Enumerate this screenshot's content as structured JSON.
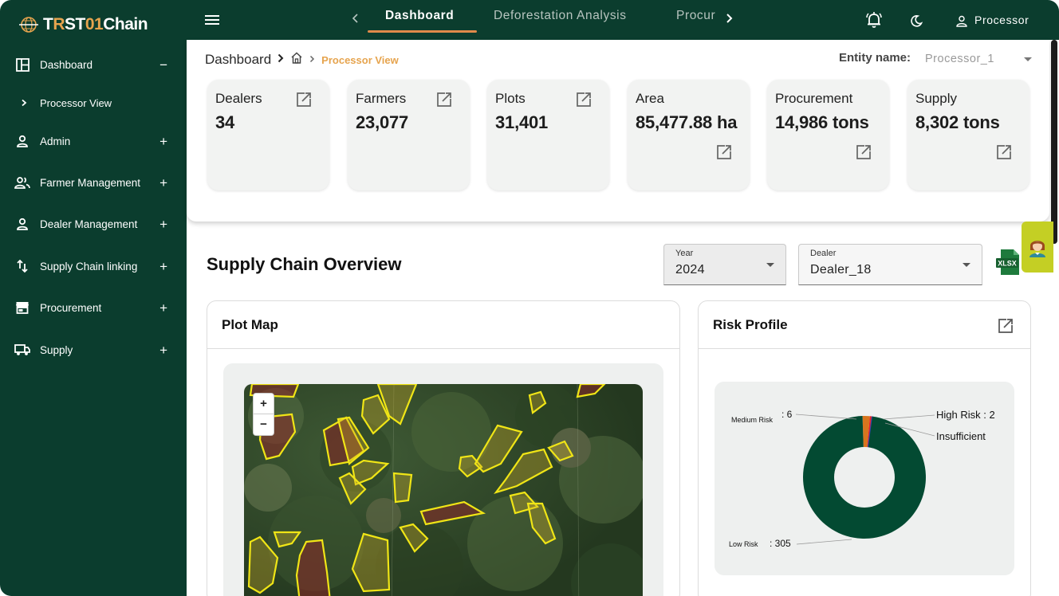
{
  "app": {
    "logo_prefix": "T",
    "logo_r": "R",
    "logo_st": "ST",
    "logo_01": "01",
    "logo_suffix": "Chain"
  },
  "sidebar": {
    "items": [
      {
        "label": "Dashboard",
        "toggle": "−",
        "icon": "dashboard-icon"
      },
      {
        "label": "Processor View",
        "toggle": "",
        "icon": "chevron-right-icon"
      },
      {
        "label": "Admin",
        "toggle": "+",
        "icon": "person-icon"
      },
      {
        "label": "Farmer Management",
        "toggle": "+",
        "icon": "people-icon"
      },
      {
        "label": "Dealer Management",
        "toggle": "+",
        "icon": "person-icon"
      },
      {
        "label": "Supply Chain linking",
        "toggle": "+",
        "icon": "swap-vertical-icon"
      },
      {
        "label": "Procurement",
        "toggle": "+",
        "icon": "store-icon"
      },
      {
        "label": "Supply",
        "toggle": "+",
        "icon": "truck-icon"
      }
    ]
  },
  "header": {
    "tabs": [
      {
        "label": "Dashboard",
        "active": true
      },
      {
        "label": "Deforestation Analysis",
        "active": false
      },
      {
        "label": "Procur",
        "active": false
      }
    ],
    "user": "Processor"
  },
  "breadcrumb": {
    "root": "Dashboard",
    "current": "Processor View"
  },
  "entity": {
    "label": "Entity name:",
    "value": "Processor_1"
  },
  "stats": [
    {
      "title": "Dealers",
      "value": "34"
    },
    {
      "title": "Farmers",
      "value": "23,077"
    },
    {
      "title": "Plots",
      "value": "31,401"
    },
    {
      "title": "Area",
      "value": "85,477.88 ha"
    },
    {
      "title": "Procurement",
      "value": "14,986 tons"
    },
    {
      "title": "Supply",
      "value": "8,302 tons"
    }
  ],
  "overview": {
    "title": "Supply Chain Overview",
    "year_label": "Year",
    "year_value": "2024",
    "dealer_label": "Dealer",
    "dealer_value": "Dealer_18",
    "export_label": "XLSX"
  },
  "plot_map": {
    "title": "Plot Map",
    "zoom_in": "+",
    "zoom_out": "−"
  },
  "risk_profile": {
    "title": "Risk Profile",
    "labels": {
      "medium_name": "Medium Risk",
      "medium_value": ": 6",
      "high": "High Risk : 2",
      "insufficient": "Insufficient",
      "low_name": "Low Risk",
      "low_value": ": 305"
    }
  },
  "colors": {
    "sidebar_bg": "#0b3d2e",
    "accent": "#e6a44e",
    "low_risk": "#034a32",
    "medium_risk": "#d8751e",
    "high_risk": "#ee2424",
    "insufficient": "#3346b5"
  },
  "chart_data": {
    "type": "pie",
    "title": "Risk Profile",
    "categories": [
      "Low Risk",
      "Medium Risk",
      "High Risk",
      "Insufficient"
    ],
    "values": [
      305,
      6,
      2,
      0
    ],
    "colors": [
      "#034a32",
      "#d8751e",
      "#ee2424",
      "#3346b5"
    ]
  }
}
